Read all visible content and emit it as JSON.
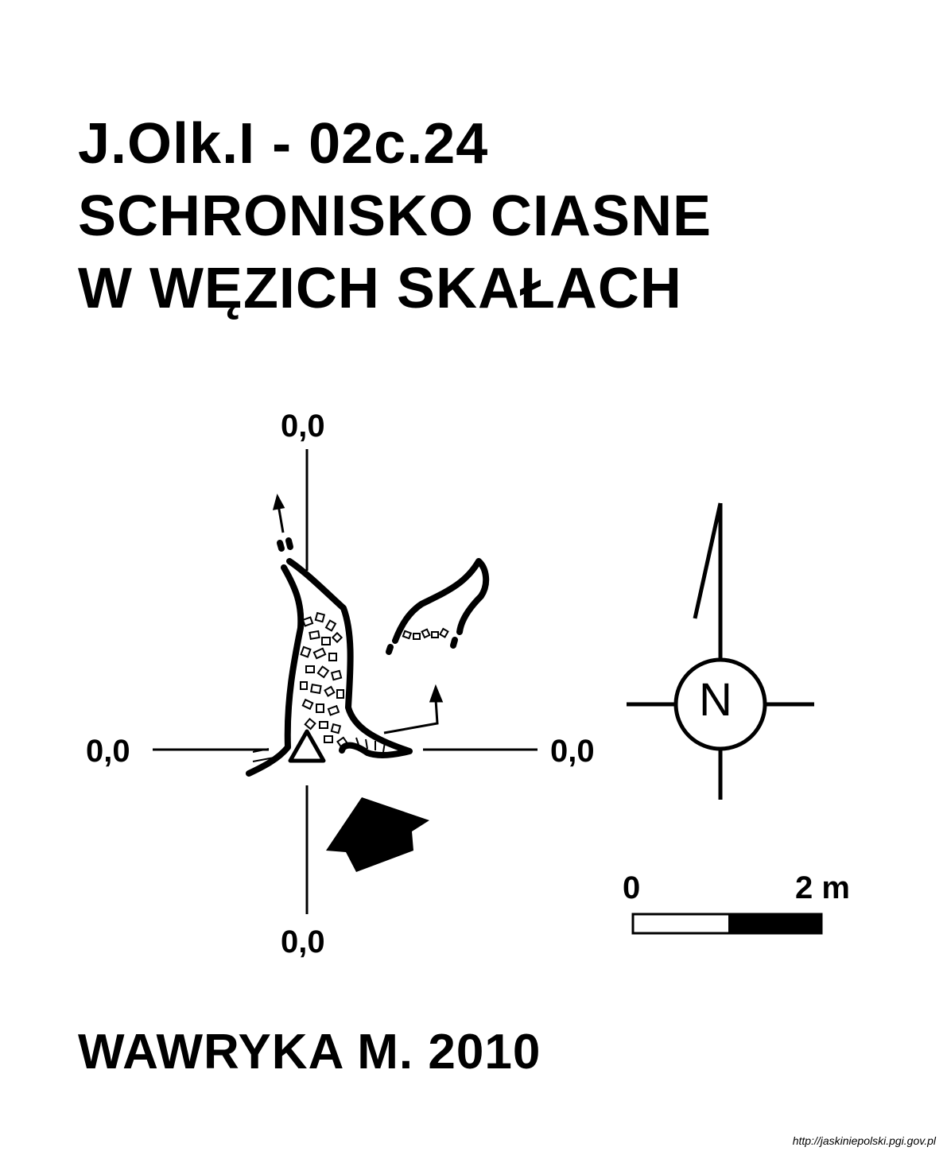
{
  "title": {
    "line1": "J.Olk.I - 02c.24",
    "line2": "SCHRONISKO CIASNE",
    "line3": "W WĘZICH SKAŁACH"
  },
  "datums": {
    "top": "0,0",
    "left": "0,0",
    "right": "0,0",
    "bottom": "0,0"
  },
  "north_arrow": {
    "letter": "N"
  },
  "scale_bar": {
    "start_label": "0",
    "end_label": "2 m"
  },
  "author": "WAWRYKA M. 2010",
  "source": "http://jaskiniepolski.pgi.gov.pl"
}
